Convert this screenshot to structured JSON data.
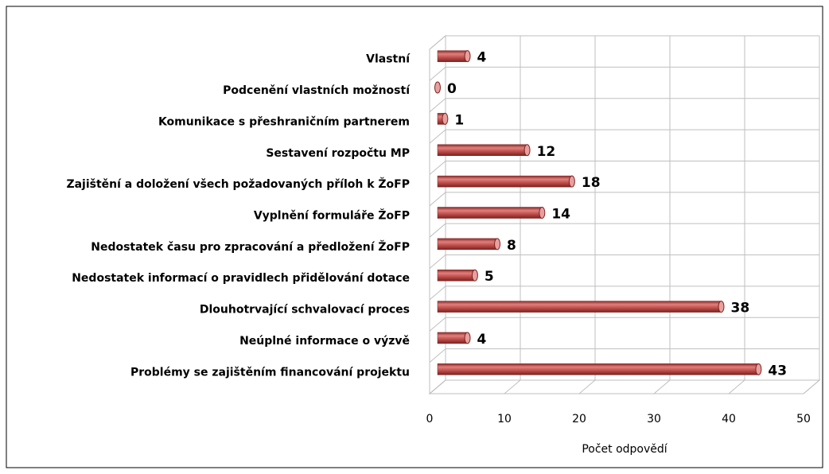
{
  "chart_data": {
    "type": "bar",
    "orientation": "horizontal",
    "categories": [
      "Vlastní",
      "Podcenění vlastních možností",
      "Komunikace s přeshraničním partnerem",
      "Sestavení rozpočtu MP",
      "Zajištění a doložení všech požadovaných příloh k ŽoFP",
      "Vyplnění formuláře ŽoFP",
      "Nedostatek času pro zpracování a předložení ŽoFP",
      "Nedostatek informací o pravidlech přidělování dotace",
      "Dlouhotrvající schvalovací proces",
      "Neúplné informace o výzvě",
      "Problémy se zajištěním financování projektu"
    ],
    "values": [
      4,
      0,
      1,
      12,
      18,
      14,
      8,
      5,
      38,
      4,
      43
    ],
    "color": "#c0504d",
    "xlabel": "Počet odpovědí",
    "xlim": [
      0,
      50
    ],
    "xticks": [
      0,
      10,
      20,
      30,
      40,
      50
    ],
    "grid": true
  }
}
